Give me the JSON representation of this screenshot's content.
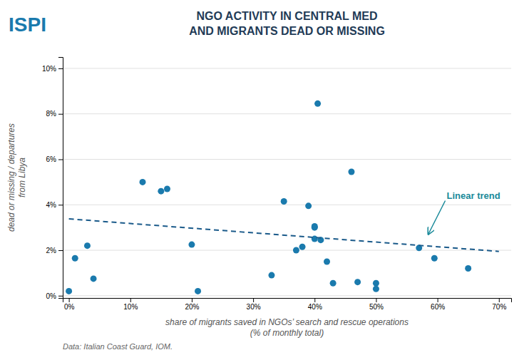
{
  "chart_data": {
    "type": "scatter",
    "title": "NGO ACTIVITY IN CENTRAL MED\nAND MIGRANTS DEAD OR MISSING",
    "logo": {
      "text": "ISPI",
      "color": "#1a7aad"
    },
    "x_label": "share of migrants saved in NGOs’ search and rescue operations\n(% of monthly total)",
    "y_label": "dead or missing / departures\nfrom Libya",
    "source": "Data: Italian Coast Guard, IOM.",
    "series": [
      {
        "type": "scatter",
        "marker": "circle",
        "color": "#1a7aad",
        "x": [
          0.0,
          0.01,
          0.03,
          0.04,
          0.12,
          0.15,
          0.16,
          0.2,
          0.21,
          0.33,
          0.35,
          0.37,
          0.38,
          0.39,
          0.4,
          0.4,
          0.4,
          0.405,
          0.41,
          0.42,
          0.43,
          0.46,
          0.47,
          0.5,
          0.5,
          0.57,
          0.595,
          0.65
        ],
        "values": [
          0.002,
          0.0165,
          0.022,
          0.0075,
          0.05,
          0.046,
          0.047,
          0.0225,
          0.002,
          0.009,
          0.0415,
          0.02,
          0.0215,
          0.0395,
          0.03,
          0.0305,
          0.025,
          0.0845,
          0.0245,
          0.015,
          0.0055,
          0.0545,
          0.006,
          0.0055,
          0.003,
          0.021,
          0.0165,
          0.012
        ]
      },
      {
        "type": "line",
        "line_style": "dashed",
        "color": "#1a5a8a",
        "x": [
          0.0,
          0.7
        ],
        "values": [
          0.0338,
          0.0195
        ]
      }
    ],
    "annotations": [
      {
        "text": "Linear trend",
        "x": 0.615,
        "y": 0.044,
        "arrow_x": 0.585,
        "arrow_y": 0.027,
        "color": "#1a8a9a"
      }
    ],
    "xlim": [
      -0.01,
      0.72
    ],
    "ylim": [
      -0.001,
      0.105
    ],
    "xticks": [
      {
        "value": 0.0,
        "label": "0%"
      },
      {
        "value": 0.1,
        "label": "10%"
      },
      {
        "value": 0.2,
        "label": "20%"
      },
      {
        "value": 0.3,
        "label": "30%"
      },
      {
        "value": 0.4,
        "label": "40%"
      },
      {
        "value": 0.5,
        "label": "50%"
      },
      {
        "value": 0.6,
        "label": "60%"
      },
      {
        "value": 0.7,
        "label": "70%"
      }
    ],
    "yticks": [
      {
        "value": 0.0,
        "label": "0%"
      },
      {
        "value": 0.02,
        "label": "2%"
      },
      {
        "value": 0.04,
        "label": "4%"
      },
      {
        "value": 0.06,
        "label": "6%"
      },
      {
        "value": 0.08,
        "label": "8%"
      },
      {
        "value": 0.1,
        "label": "10%"
      }
    ],
    "grid": "y"
  }
}
